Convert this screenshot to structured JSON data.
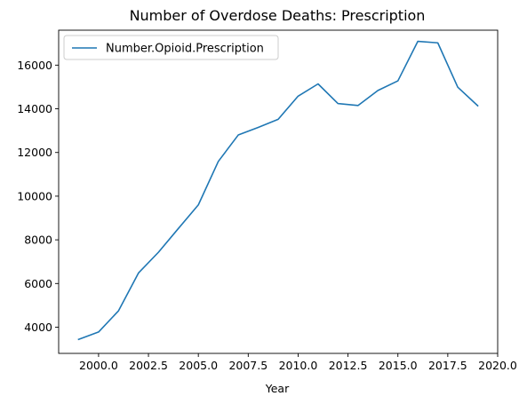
{
  "chart_data": {
    "type": "line",
    "title": "Number of Overdose Deaths: Prescription",
    "xlabel": "Year",
    "ylabel": "",
    "xlim": [
      1998.0,
      2020.0
    ],
    "ylim": [
      2800,
      17600
    ],
    "xticks": [
      2000.0,
      2002.5,
      2005.0,
      2007.5,
      2010.0,
      2012.5,
      2015.0,
      2017.5,
      2020.0
    ],
    "xtick_labels": [
      "2000.0",
      "2002.5",
      "2005.0",
      "2007.5",
      "2010.0",
      "2012.5",
      "2015.0",
      "2017.5",
      "2020.0"
    ],
    "yticks": [
      4000,
      6000,
      8000,
      10000,
      12000,
      14000,
      16000
    ],
    "ytick_labels": [
      "4000",
      "6000",
      "8000",
      "10000",
      "12000",
      "14000",
      "16000"
    ],
    "grid": false,
    "legend_position": "top-left",
    "series": [
      {
        "name": "Number.Opioid.Prescription",
        "color": "#1f77b4",
        "x": [
          1999,
          2000,
          2001,
          2002,
          2003,
          2004,
          2005,
          2006,
          2007,
          2008,
          2009,
          2010,
          2011,
          2012,
          2013,
          2014,
          2015,
          2016,
          2017,
          2018,
          2019
        ],
        "y": [
          3440,
          3780,
          4750,
          6480,
          7430,
          8520,
          9600,
          11590,
          12800,
          13150,
          13520,
          14580,
          15140,
          14240,
          14150,
          14840,
          15280,
          17090,
          17020,
          14990,
          14140
        ]
      }
    ]
  }
}
